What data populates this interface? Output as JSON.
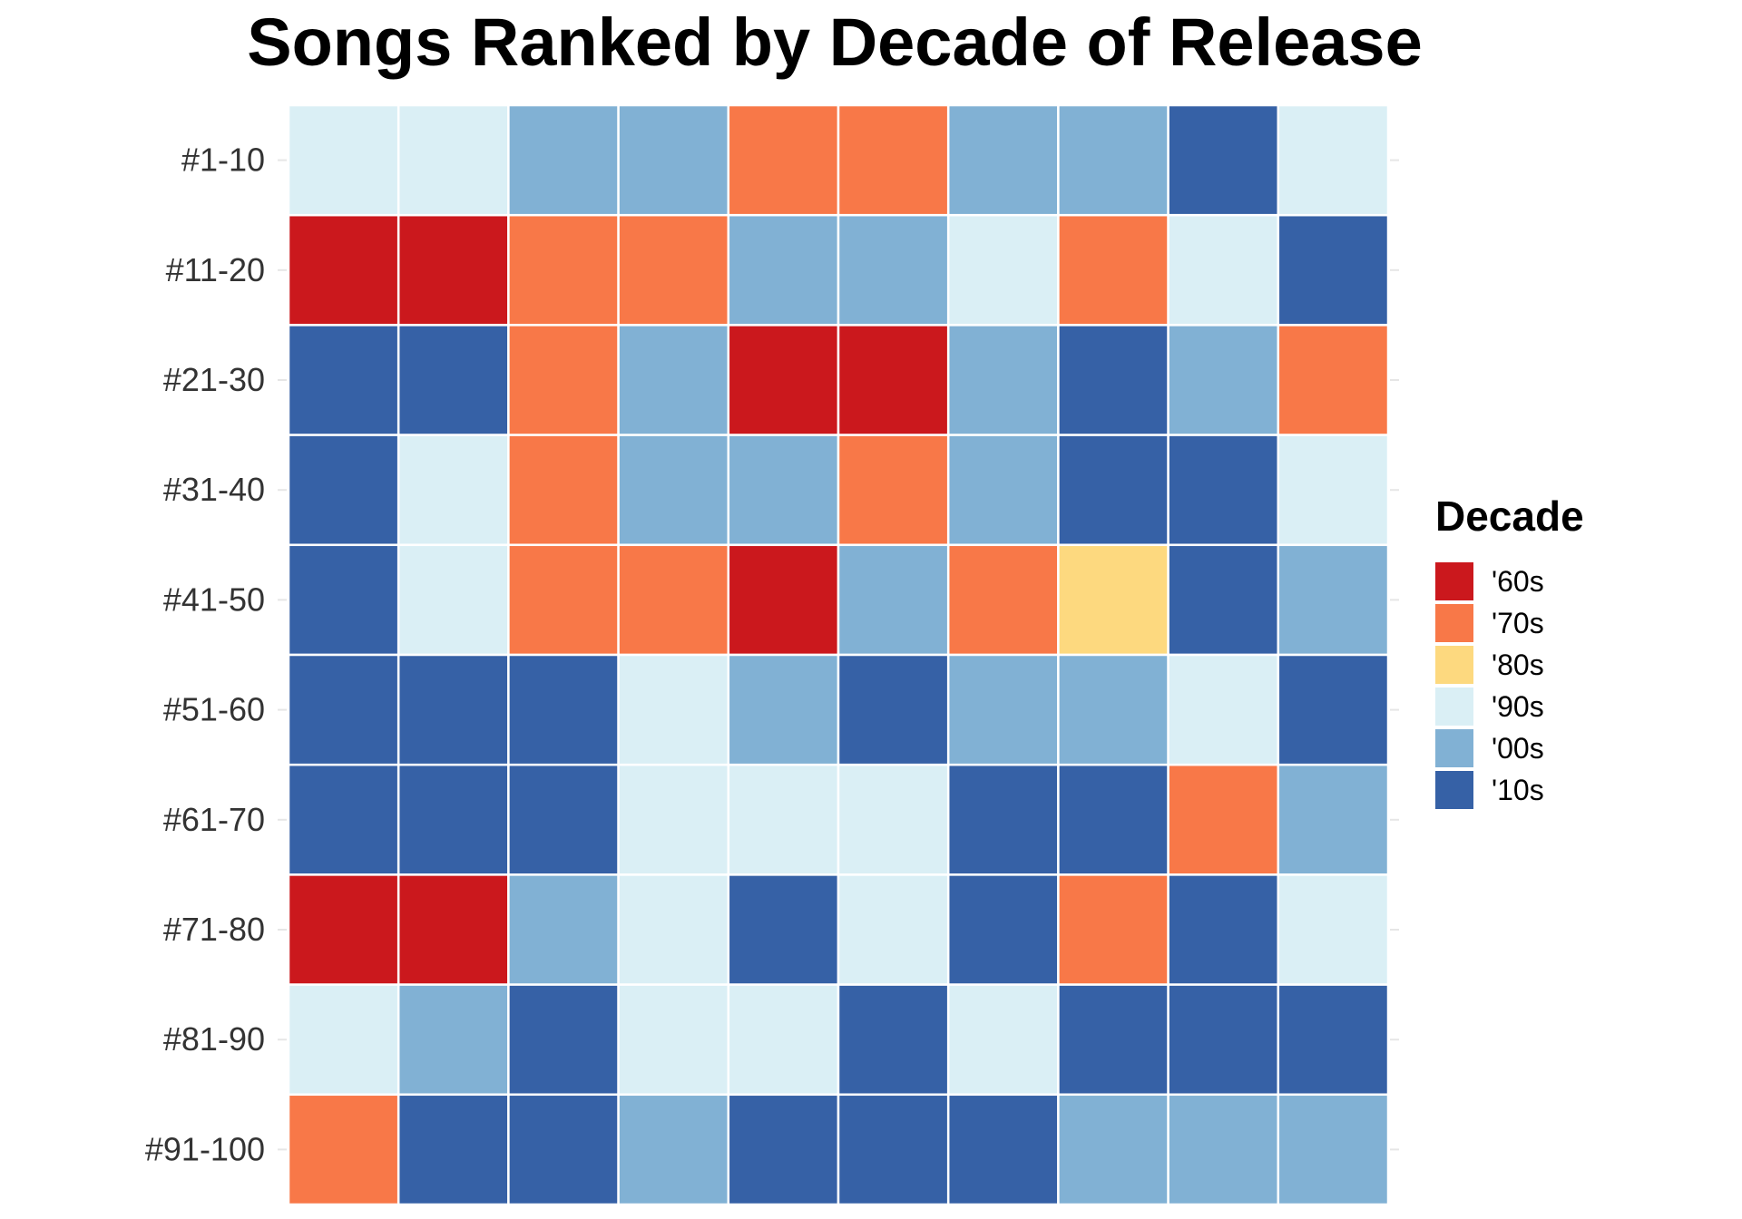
{
  "chart_data": {
    "type": "heatmap",
    "title": "Songs Ranked by Decade of Release",
    "xlabel": "",
    "ylabel": "",
    "rows": [
      "#1-10",
      "#11-20",
      "#21-30",
      "#31-40",
      "#41-50",
      "#51-60",
      "#61-70",
      "#71-80",
      "#81-90",
      "#91-100"
    ],
    "columns": 10,
    "legend": {
      "title": "Decade",
      "placement": "right",
      "entries": [
        {
          "label": "'60s",
          "color": "#cb181d"
        },
        {
          "label": "'70s",
          "color": "#f87848"
        },
        {
          "label": "'80s",
          "color": "#fdd97f"
        },
        {
          "label": "'90s",
          "color": "#daeff5"
        },
        {
          "label": "'00s",
          "color": "#81b1d4"
        },
        {
          "label": "'10s",
          "color": "#3661a6"
        }
      ]
    },
    "cells": [
      [
        "'90s",
        "'90s",
        "'00s",
        "'00s",
        "'70s",
        "'70s",
        "'00s",
        "'00s",
        "'10s",
        "'90s"
      ],
      [
        "'60s",
        "'60s",
        "'70s",
        "'70s",
        "'00s",
        "'00s",
        "'90s",
        "'70s",
        "'90s",
        "'10s"
      ],
      [
        "'10s",
        "'10s",
        "'70s",
        "'00s",
        "'60s",
        "'60s",
        "'00s",
        "'10s",
        "'00s",
        "'70s"
      ],
      [
        "'10s",
        "'90s",
        "'70s",
        "'00s",
        "'00s",
        "'70s",
        "'00s",
        "'10s",
        "'10s",
        "'90s"
      ],
      [
        "'10s",
        "'90s",
        "'70s",
        "'70s",
        "'60s",
        "'00s",
        "'70s",
        "'80s",
        "'10s",
        "'00s"
      ],
      [
        "'10s",
        "'10s",
        "'10s",
        "'90s",
        "'00s",
        "'10s",
        "'00s",
        "'00s",
        "'90s",
        "'10s"
      ],
      [
        "'10s",
        "'10s",
        "'10s",
        "'90s",
        "'90s",
        "'90s",
        "'10s",
        "'10s",
        "'70s",
        "'00s"
      ],
      [
        "'60s",
        "'60s",
        "'00s",
        "'90s",
        "'10s",
        "'90s",
        "'10s",
        "'70s",
        "'10s",
        "'90s"
      ],
      [
        "'90s",
        "'00s",
        "'10s",
        "'90s",
        "'90s",
        "'10s",
        "'90s",
        "'10s",
        "'10s",
        "'10s"
      ],
      [
        "'70s",
        "'10s",
        "'10s",
        "'00s",
        "'10s",
        "'10s",
        "'10s",
        "'00s",
        "'00s",
        "'00s"
      ]
    ],
    "grid": false,
    "cell_border_color": "#ffffff",
    "tick_color": "#e6e6e6"
  }
}
